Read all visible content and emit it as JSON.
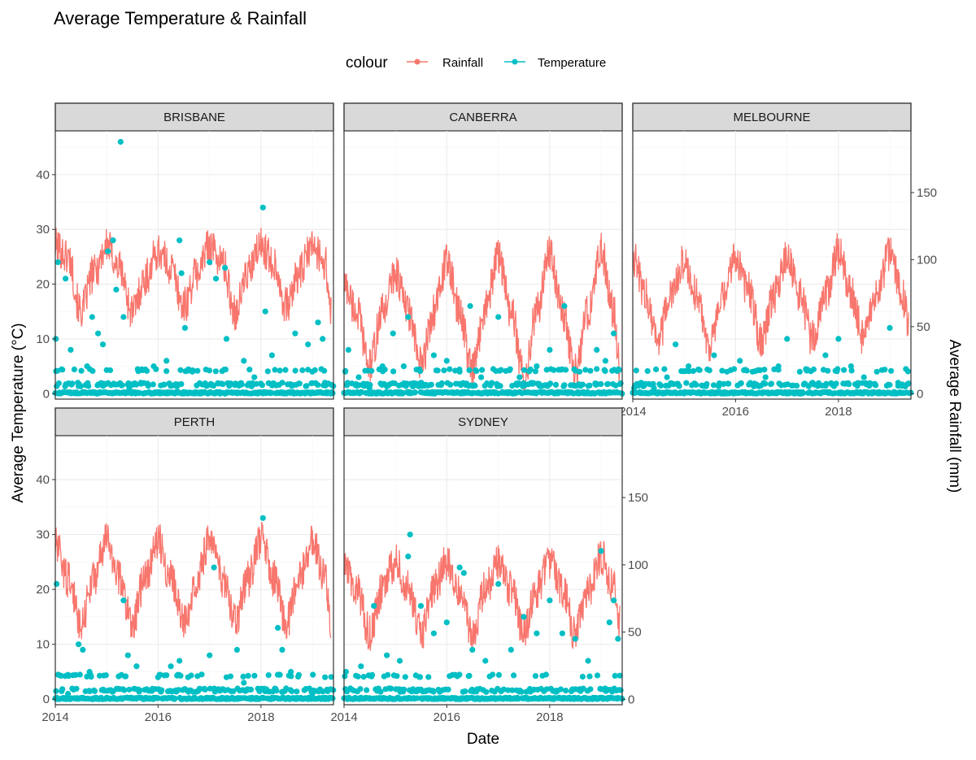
{
  "chart_data": {
    "type": "line+scatter",
    "title": "Average Temperature & Rainfall",
    "xlabel": "Date",
    "ylabel_left": "Average Temperature (°C)",
    "ylabel_right": "Average Rainfall (mm)",
    "legend": {
      "title": "colour",
      "position": "top",
      "entries": [
        {
          "label": "Rainfall",
          "color": "#F8766D"
        },
        {
          "label": "Temperature",
          "color": "#00BFC4"
        }
      ]
    },
    "x_range": [
      "2014-01-01",
      "2019-05-31"
    ],
    "x_ticks": [
      "2014",
      "2016",
      "2018"
    ],
    "y_left_range": [
      -1,
      48
    ],
    "y_left_ticks": [
      "0",
      "10",
      "20",
      "30",
      "40"
    ],
    "y_right_range": [
      -4,
      196
    ],
    "y_right_ticks": [
      "0",
      "50",
      "100",
      "150"
    ],
    "grid": true,
    "panels": [
      {
        "name": "BRISBANE",
        "rainfall_line": [
          [
            "2014-01-01",
            27
          ],
          [
            "2014-04-01",
            25
          ],
          [
            "2014-07-01",
            15
          ],
          [
            "2014-10-01",
            22
          ],
          [
            "2015-01-01",
            27
          ],
          [
            "2015-04-01",
            23
          ],
          [
            "2015-07-01",
            15
          ],
          [
            "2015-10-01",
            21
          ],
          [
            "2016-01-01",
            26
          ],
          [
            "2016-04-01",
            23
          ],
          [
            "2016-07-01",
            16
          ],
          [
            "2016-10-01",
            22
          ],
          [
            "2017-01-01",
            27
          ],
          [
            "2017-04-01",
            24
          ],
          [
            "2017-07-01",
            15
          ],
          [
            "2017-10-01",
            22
          ],
          [
            "2018-01-01",
            27
          ],
          [
            "2018-04-01",
            24
          ],
          [
            "2018-07-01",
            16
          ],
          [
            "2018-10-01",
            22
          ],
          [
            "2019-01-01",
            27
          ],
          [
            "2019-04-01",
            24
          ],
          [
            "2019-05-15",
            15
          ]
        ],
        "temperature_points": [
          [
            "2014-01-05",
            10
          ],
          [
            "2014-01-20",
            24
          ],
          [
            "2014-03-15",
            21
          ],
          [
            "2014-04-20",
            8
          ],
          [
            "2014-06-10",
            2
          ],
          [
            "2014-08-15",
            5
          ],
          [
            "2014-09-20",
            14
          ],
          [
            "2014-11-01",
            11
          ],
          [
            "2014-12-05",
            9
          ],
          [
            "2015-01-10",
            26
          ],
          [
            "2015-02-15",
            28
          ],
          [
            "2015-03-10",
            19
          ],
          [
            "2015-04-10",
            46
          ],
          [
            "2015-05-01",
            14
          ],
          [
            "2015-06-10",
            1
          ],
          [
            "2015-09-01",
            2
          ],
          [
            "2015-12-01",
            5
          ],
          [
            "2016-03-01",
            6
          ],
          [
            "2016-06-01",
            28
          ],
          [
            "2016-06-15",
            22
          ],
          [
            "2016-07-10",
            12
          ],
          [
            "2016-09-01",
            4
          ],
          [
            "2017-01-01",
            24
          ],
          [
            "2017-02-15",
            21
          ],
          [
            "2017-04-20",
            23
          ],
          [
            "2017-05-01",
            10
          ],
          [
            "2017-09-01",
            6
          ],
          [
            "2017-11-15",
            3
          ],
          [
            "2018-01-15",
            34
          ],
          [
            "2018-02-01",
            15
          ],
          [
            "2018-03-20",
            7
          ],
          [
            "2018-06-01",
            2
          ],
          [
            "2018-09-01",
            11
          ],
          [
            "2018-12-01",
            9
          ],
          [
            "2019-01-01",
            4
          ],
          [
            "2019-02-10",
            13
          ],
          [
            "2019-03-15",
            10
          ],
          [
            "2019-04-01",
            2
          ]
        ]
      },
      {
        "name": "CANBERRA",
        "rainfall_line": [
          [
            "2014-01-01",
            20
          ],
          [
            "2014-04-01",
            15
          ],
          [
            "2014-07-01",
            5
          ],
          [
            "2014-10-01",
            15
          ],
          [
            "2015-01-01",
            22
          ],
          [
            "2015-04-01",
            15
          ],
          [
            "2015-07-01",
            5
          ],
          [
            "2015-10-01",
            15
          ],
          [
            "2016-01-01",
            24
          ],
          [
            "2016-04-01",
            15
          ],
          [
            "2016-07-01",
            4
          ],
          [
            "2016-10-01",
            16
          ],
          [
            "2017-01-01",
            25
          ],
          [
            "2017-04-01",
            15
          ],
          [
            "2017-07-01",
            3
          ],
          [
            "2017-10-01",
            15
          ],
          [
            "2018-01-01",
            26
          ],
          [
            "2018-04-01",
            15
          ],
          [
            "2018-07-01",
            4
          ],
          [
            "2018-10-01",
            15
          ],
          [
            "2019-01-01",
            26
          ],
          [
            "2019-04-01",
            15
          ],
          [
            "2019-05-15",
            5
          ]
        ],
        "temperature_points": [
          [
            "2014-01-10",
            4
          ],
          [
            "2014-02-01",
            8
          ],
          [
            "2014-04-15",
            3
          ],
          [
            "2014-07-01",
            1
          ],
          [
            "2014-10-01",
            5
          ],
          [
            "2014-12-15",
            11
          ],
          [
            "2015-03-01",
            5
          ],
          [
            "2015-04-01",
            14
          ],
          [
            "2015-07-01",
            2
          ],
          [
            "2015-10-01",
            7
          ],
          [
            "2016-01-01",
            6
          ],
          [
            "2016-04-01",
            4
          ],
          [
            "2016-06-15",
            16
          ],
          [
            "2016-09-01",
            3
          ],
          [
            "2017-01-01",
            14
          ],
          [
            "2017-06-01",
            3
          ],
          [
            "2017-10-01",
            5
          ],
          [
            "2018-01-01",
            8
          ],
          [
            "2018-04-15",
            16
          ],
          [
            "2018-08-01",
            4
          ],
          [
            "2018-12-01",
            8
          ],
          [
            "2019-02-01",
            6
          ],
          [
            "2019-04-01",
            11
          ]
        ]
      },
      {
        "name": "MELBOURNE",
        "rainfall_line": [
          [
            "2014-01-01",
            25
          ],
          [
            "2014-04-01",
            18
          ],
          [
            "2014-07-01",
            10
          ],
          [
            "2014-10-01",
            18
          ],
          [
            "2015-01-01",
            24
          ],
          [
            "2015-04-01",
            18
          ],
          [
            "2015-07-01",
            9
          ],
          [
            "2015-10-01",
            17
          ],
          [
            "2016-01-01",
            25
          ],
          [
            "2016-04-01",
            19
          ],
          [
            "2016-07-01",
            10
          ],
          [
            "2016-10-01",
            18
          ],
          [
            "2017-01-01",
            25
          ],
          [
            "2017-04-01",
            18
          ],
          [
            "2017-07-01",
            10
          ],
          [
            "2017-10-01",
            18
          ],
          [
            "2018-01-01",
            26
          ],
          [
            "2018-04-01",
            18
          ],
          [
            "2018-07-01",
            10
          ],
          [
            "2018-10-01",
            18
          ],
          [
            "2019-01-01",
            26
          ],
          [
            "2019-04-01",
            18
          ],
          [
            "2019-05-15",
            12
          ]
        ],
        "temperature_points": [
          [
            "2014-01-10",
            1
          ],
          [
            "2014-03-01",
            2
          ],
          [
            "2014-06-01",
            1
          ],
          [
            "2014-09-01",
            3
          ],
          [
            "2014-11-01",
            9
          ],
          [
            "2015-02-01",
            5
          ],
          [
            "2015-08-01",
            7
          ],
          [
            "2015-11-01",
            4
          ],
          [
            "2016-02-01",
            6
          ],
          [
            "2016-05-01",
            4
          ],
          [
            "2016-08-01",
            3
          ],
          [
            "2016-11-01",
            5
          ],
          [
            "2017-01-01",
            10
          ],
          [
            "2017-04-01",
            4
          ],
          [
            "2017-07-01",
            2
          ],
          [
            "2017-10-01",
            7
          ],
          [
            "2018-01-01",
            10
          ],
          [
            "2018-04-01",
            5
          ],
          [
            "2018-07-01",
            3
          ],
          [
            "2018-10-01",
            4
          ],
          [
            "2019-01-01",
            12
          ],
          [
            "2019-03-01",
            2
          ]
        ]
      },
      {
        "name": "PERTH",
        "rainfall_line": [
          [
            "2014-01-01",
            28
          ],
          [
            "2014-04-01",
            22
          ],
          [
            "2014-07-01",
            14
          ],
          [
            "2014-10-01",
            22
          ],
          [
            "2015-01-01",
            29
          ],
          [
            "2015-04-01",
            22
          ],
          [
            "2015-07-01",
            14
          ],
          [
            "2015-10-01",
            22
          ],
          [
            "2016-01-01",
            29
          ],
          [
            "2016-04-01",
            22
          ],
          [
            "2016-07-01",
            14
          ],
          [
            "2016-10-01",
            22
          ],
          [
            "2017-01-01",
            29
          ],
          [
            "2017-04-01",
            22
          ],
          [
            "2017-07-01",
            14
          ],
          [
            "2017-10-01",
            22
          ],
          [
            "2018-01-01",
            29
          ],
          [
            "2018-04-01",
            22
          ],
          [
            "2018-07-01",
            14
          ],
          [
            "2018-10-01",
            22
          ],
          [
            "2019-01-01",
            29
          ],
          [
            "2019-04-01",
            22
          ],
          [
            "2019-05-15",
            12
          ]
        ],
        "temperature_points": [
          [
            "2014-01-10",
            21
          ],
          [
            "2014-04-01",
            1
          ],
          [
            "2014-06-15",
            10
          ],
          [
            "2014-07-15",
            9
          ],
          [
            "2014-09-01",
            5
          ],
          [
            "2015-05-01",
            18
          ],
          [
            "2015-06-01",
            8
          ],
          [
            "2015-08-01",
            6
          ],
          [
            "2016-01-01",
            4
          ],
          [
            "2016-04-01",
            6
          ],
          [
            "2016-06-01",
            7
          ],
          [
            "2016-08-01",
            4
          ],
          [
            "2017-01-01",
            8
          ],
          [
            "2017-02-01",
            24
          ],
          [
            "2017-05-01",
            4
          ],
          [
            "2017-07-15",
            9
          ],
          [
            "2017-09-01",
            3
          ],
          [
            "2018-01-15",
            33
          ],
          [
            "2018-05-01",
            13
          ],
          [
            "2018-06-01",
            9
          ],
          [
            "2018-08-01",
            5
          ],
          [
            "2019-01-01",
            1
          ],
          [
            "2019-04-01",
            4
          ]
        ]
      },
      {
        "name": "SYDNEY",
        "rainfall_line": [
          [
            "2014-01-01",
            24
          ],
          [
            "2014-04-01",
            20
          ],
          [
            "2014-07-01",
            12
          ],
          [
            "2014-10-01",
            20
          ],
          [
            "2015-01-01",
            25
          ],
          [
            "2015-04-01",
            20
          ],
          [
            "2015-07-01",
            12
          ],
          [
            "2015-10-01",
            20
          ],
          [
            "2016-01-01",
            25
          ],
          [
            "2016-04-01",
            20
          ],
          [
            "2016-07-01",
            12
          ],
          [
            "2016-10-01",
            20
          ],
          [
            "2017-01-01",
            25
          ],
          [
            "2017-04-01",
            20
          ],
          [
            "2017-07-01",
            12
          ],
          [
            "2017-10-01",
            20
          ],
          [
            "2018-01-01",
            25
          ],
          [
            "2018-04-01",
            20
          ],
          [
            "2018-07-01",
            12
          ],
          [
            "2018-10-01",
            20
          ],
          [
            "2019-01-01",
            26
          ],
          [
            "2019-04-01",
            20
          ],
          [
            "2019-05-15",
            14
          ]
        ],
        "temperature_points": [
          [
            "2014-01-15",
            5
          ],
          [
            "2014-05-01",
            6
          ],
          [
            "2014-08-01",
            17
          ],
          [
            "2014-11-01",
            8
          ],
          [
            "2015-02-01",
            7
          ],
          [
            "2015-04-01",
            26
          ],
          [
            "2015-04-15",
            30
          ],
          [
            "2015-07-01",
            17
          ],
          [
            "2015-10-01",
            12
          ],
          [
            "2016-01-01",
            14
          ],
          [
            "2016-04-01",
            24
          ],
          [
            "2016-05-01",
            23
          ],
          [
            "2016-07-01",
            9
          ],
          [
            "2016-10-01",
            7
          ],
          [
            "2017-01-01",
            21
          ],
          [
            "2017-04-01",
            9
          ],
          [
            "2017-07-01",
            15
          ],
          [
            "2017-10-01",
            12
          ],
          [
            "2018-01-01",
            18
          ],
          [
            "2018-04-01",
            12
          ],
          [
            "2018-07-01",
            11
          ],
          [
            "2018-10-01",
            7
          ],
          [
            "2019-01-01",
            27
          ],
          [
            "2019-03-01",
            14
          ],
          [
            "2019-04-01",
            18
          ],
          [
            "2019-05-01",
            11
          ]
        ]
      }
    ]
  }
}
